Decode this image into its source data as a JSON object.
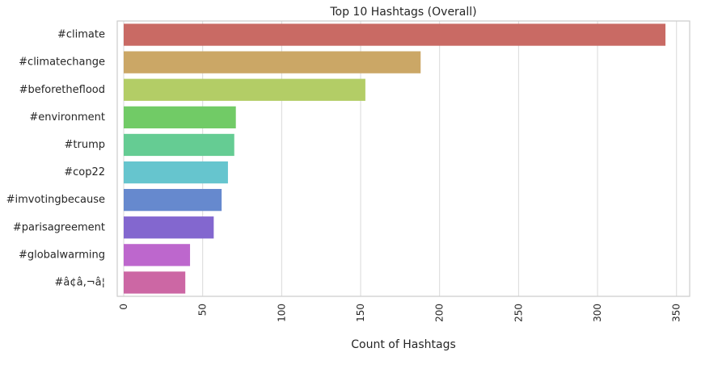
{
  "chart_data": {
    "type": "bar",
    "orientation": "horizontal",
    "title": "Top 10 Hashtags (Overall)",
    "xlabel": "Count of Hashtags",
    "ylabel": "",
    "categories": [
      "#climate",
      "#climatechange",
      "#beforetheflood",
      "#environment",
      "#trump",
      "#cop22",
      "#imvotingbecause",
      "#parisagreement",
      "#globalwarming",
      "#â¢â‚¬â¦"
    ],
    "values": [
      343,
      188,
      153,
      71,
      70,
      66,
      62,
      57,
      42,
      39
    ],
    "colors": [
      "#c96a64",
      "#cba766",
      "#b3cd66",
      "#71cb66",
      "#65cc93",
      "#66c5ce",
      "#6689ce",
      "#8367cf",
      "#bd67cd",
      "#cc67a4"
    ],
    "xticks": [
      0,
      50,
      100,
      150,
      200,
      250,
      300,
      350
    ],
    "xtick_labels": [
      "0",
      "50",
      "100",
      "150",
      "200",
      "250",
      "300",
      "350"
    ],
    "xlim": [
      0,
      360
    ],
    "grid": true,
    "grid_color": "#d9d9d9",
    "axes_edge_color": "#cccccc",
    "legend": "none"
  }
}
